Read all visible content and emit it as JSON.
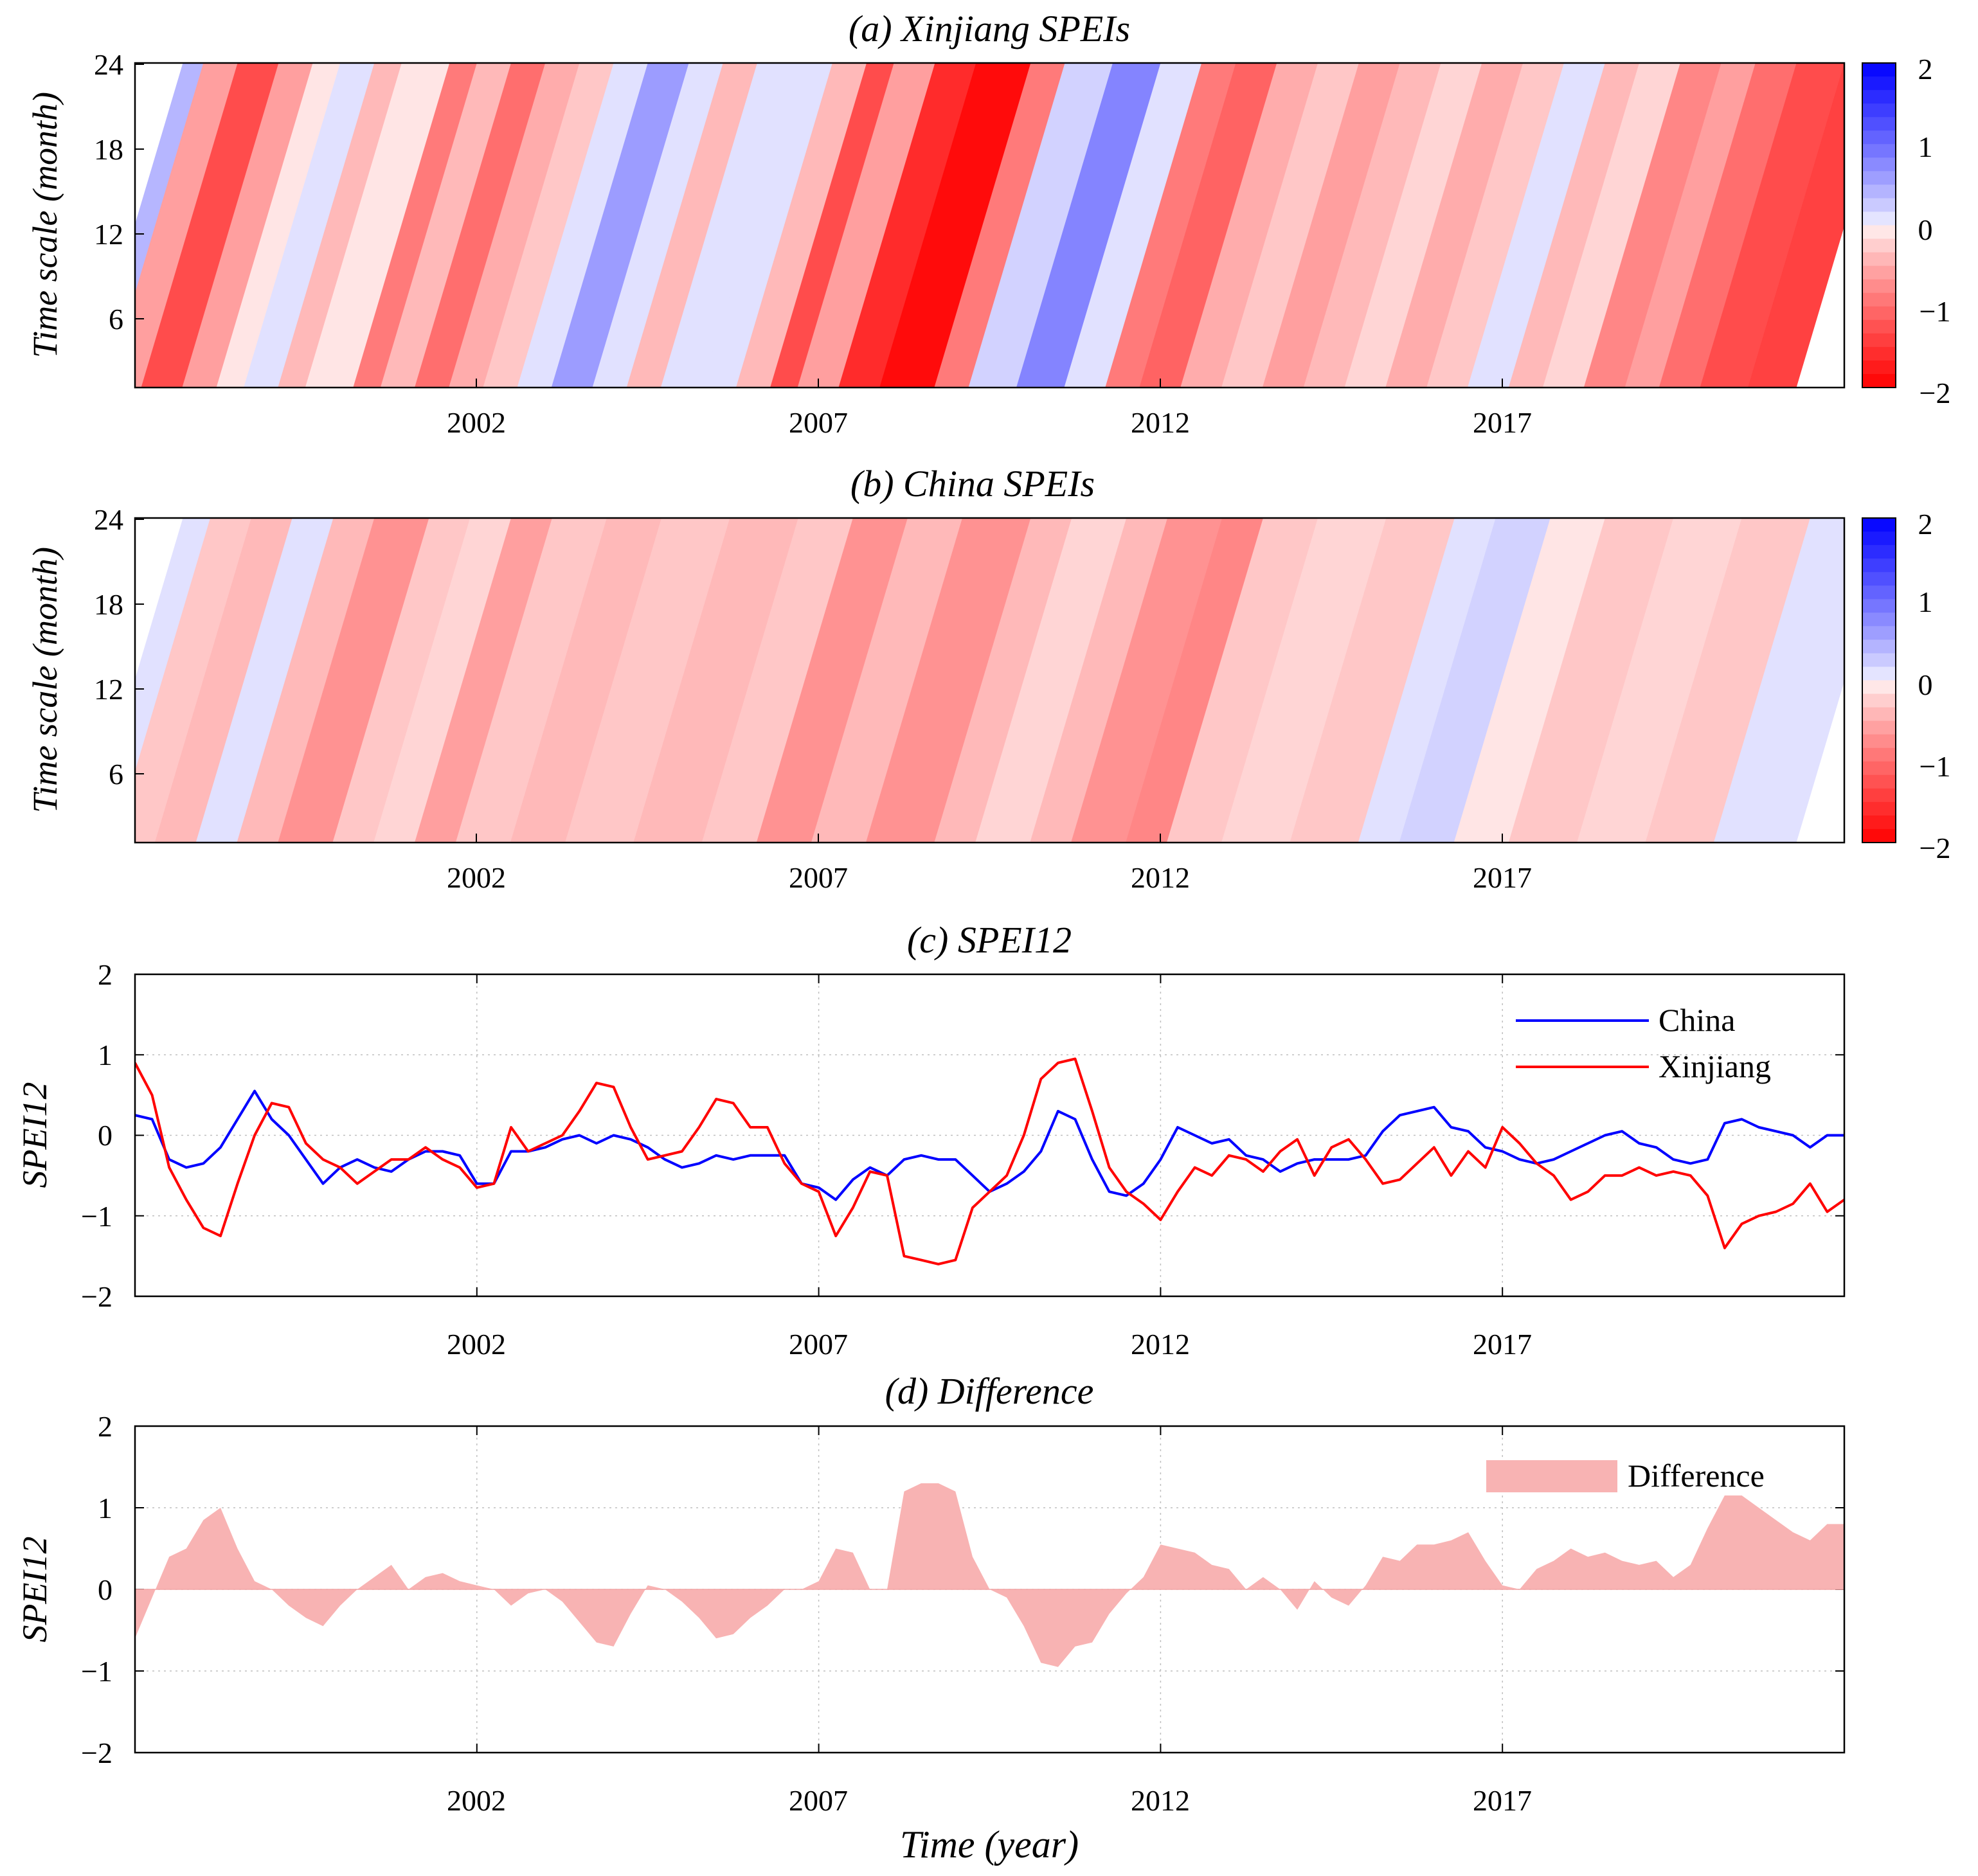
{
  "figure_xlabel": "Time (year)",
  "colors": {
    "china": "#0000ff",
    "xinjiang": "#ff0000",
    "difference_fill": "#f8b3b3",
    "grid": "#bfbfbf"
  },
  "chart_data": [
    {
      "type": "heatmap",
      "title": "(a) Xinjiang SPEIs",
      "ylabel": "Time scale (month)",
      "yticks": [
        "6",
        "12",
        "18",
        "24"
      ],
      "xticks": [
        "2002",
        "2007",
        "2012",
        "2017"
      ],
      "xlim": [
        1997,
        2022
      ],
      "ylim": [
        1,
        24
      ],
      "colorbar": {
        "ticks": [
          "2",
          "1",
          "0",
          "−1",
          "−2"
        ],
        "range": [
          -2,
          2
        ]
      },
      "bands": [
        {
          "start": 1997.0,
          "end": 1997.3,
          "v": 0.4
        },
        {
          "start": 1997.3,
          "end": 1997.8,
          "v": -0.6
        },
        {
          "start": 1997.8,
          "end": 1998.4,
          "v": -1.3
        },
        {
          "start": 1998.4,
          "end": 1998.9,
          "v": -0.6
        },
        {
          "start": 1998.9,
          "end": 1999.3,
          "v": -0.1
        },
        {
          "start": 1999.3,
          "end": 1999.8,
          "v": 0.1
        },
        {
          "start": 1999.8,
          "end": 2000.2,
          "v": -0.4
        },
        {
          "start": 2000.2,
          "end": 2000.9,
          "v": -0.1
        },
        {
          "start": 2000.9,
          "end": 2001.3,
          "v": -0.9
        },
        {
          "start": 2001.3,
          "end": 2001.8,
          "v": -0.4
        },
        {
          "start": 2001.8,
          "end": 2002.3,
          "v": -1.0
        },
        {
          "start": 2002.3,
          "end": 2002.8,
          "v": -0.5
        },
        {
          "start": 2002.8,
          "end": 2003.3,
          "v": -0.3
        },
        {
          "start": 2003.3,
          "end": 2003.8,
          "v": 0.1
        },
        {
          "start": 2003.8,
          "end": 2004.4,
          "v": 0.6
        },
        {
          "start": 2004.4,
          "end": 2004.9,
          "v": 0.1
        },
        {
          "start": 2004.9,
          "end": 2005.4,
          "v": -0.4
        },
        {
          "start": 2005.4,
          "end": 2006.0,
          "v": 0.1
        },
        {
          "start": 2006.0,
          "end": 2006.5,
          "v": 0.1
        },
        {
          "start": 2006.5,
          "end": 2007.0,
          "v": -0.4
        },
        {
          "start": 2007.0,
          "end": 2007.4,
          "v": -1.3
        },
        {
          "start": 2007.4,
          "end": 2008.0,
          "v": -0.6
        },
        {
          "start": 2008.0,
          "end": 2008.6,
          "v": -1.6
        },
        {
          "start": 2008.6,
          "end": 2009.4,
          "v": -1.9
        },
        {
          "start": 2009.4,
          "end": 2009.9,
          "v": -0.9
        },
        {
          "start": 2009.9,
          "end": 2010.6,
          "v": 0.2
        },
        {
          "start": 2010.6,
          "end": 2011.3,
          "v": 0.8
        },
        {
          "start": 2011.3,
          "end": 2011.9,
          "v": 0.1
        },
        {
          "start": 2011.9,
          "end": 2012.4,
          "v": -0.9
        },
        {
          "start": 2012.4,
          "end": 2013.0,
          "v": -1.1
        },
        {
          "start": 2013.0,
          "end": 2013.6,
          "v": -0.5
        },
        {
          "start": 2013.6,
          "end": 2014.2,
          "v": -0.3
        },
        {
          "start": 2014.2,
          "end": 2014.8,
          "v": -0.6
        },
        {
          "start": 2014.8,
          "end": 2015.4,
          "v": -0.4
        },
        {
          "start": 2015.4,
          "end": 2016.0,
          "v": -0.2
        },
        {
          "start": 2016.0,
          "end": 2016.6,
          "v": -0.5
        },
        {
          "start": 2016.6,
          "end": 2017.2,
          "v": -0.3
        },
        {
          "start": 2017.2,
          "end": 2017.8,
          "v": 0.1
        },
        {
          "start": 2017.8,
          "end": 2018.3,
          "v": -0.4
        },
        {
          "start": 2018.3,
          "end": 2018.9,
          "v": -0.2
        },
        {
          "start": 2018.9,
          "end": 2019.5,
          "v": -0.8
        },
        {
          "start": 2019.5,
          "end": 2020.0,
          "v": -0.6
        },
        {
          "start": 2020.0,
          "end": 2020.6,
          "v": -1.0
        },
        {
          "start": 2020.6,
          "end": 2021.3,
          "v": -1.3
        },
        {
          "start": 2021.3,
          "end": 2022.0,
          "v": -1.4
        }
      ]
    },
    {
      "type": "heatmap",
      "title": "(b) China SPEIs",
      "ylabel": "Time scale (month)",
      "yticks": [
        "6",
        "12",
        "18",
        "24"
      ],
      "xticks": [
        "2002",
        "2007",
        "2012",
        "2017"
      ],
      "xlim": [
        1997,
        2022
      ],
      "ylim": [
        1,
        24
      ],
      "colorbar": {
        "ticks": [
          "2",
          "1",
          "0",
          "−1",
          "−2"
        ],
        "range": [
          -2,
          2
        ]
      },
      "bands": [
        {
          "start": 1997.0,
          "end": 1997.4,
          "v": 0.1
        },
        {
          "start": 1997.4,
          "end": 1998.0,
          "v": -0.3
        },
        {
          "start": 1998.0,
          "end": 1998.6,
          "v": -0.4
        },
        {
          "start": 1998.6,
          "end": 1999.2,
          "v": 0.1
        },
        {
          "start": 1999.2,
          "end": 1999.8,
          "v": -0.4
        },
        {
          "start": 1999.8,
          "end": 2000.6,
          "v": -0.7
        },
        {
          "start": 2000.6,
          "end": 2001.2,
          "v": -0.3
        },
        {
          "start": 2001.2,
          "end": 2001.8,
          "v": -0.2
        },
        {
          "start": 2001.8,
          "end": 2002.4,
          "v": -0.6
        },
        {
          "start": 2002.4,
          "end": 2003.2,
          "v": -0.3
        },
        {
          "start": 2003.2,
          "end": 2004.0,
          "v": -0.4
        },
        {
          "start": 2004.0,
          "end": 2005.0,
          "v": -0.3
        },
        {
          "start": 2005.0,
          "end": 2006.0,
          "v": -0.4
        },
        {
          "start": 2006.0,
          "end": 2006.8,
          "v": -0.3
        },
        {
          "start": 2006.8,
          "end": 2007.6,
          "v": -0.7
        },
        {
          "start": 2007.6,
          "end": 2008.4,
          "v": -0.4
        },
        {
          "start": 2008.4,
          "end": 2009.4,
          "v": -0.7
        },
        {
          "start": 2009.4,
          "end": 2010.0,
          "v": -0.4
        },
        {
          "start": 2010.0,
          "end": 2010.8,
          "v": -0.2
        },
        {
          "start": 2010.8,
          "end": 2011.4,
          "v": -0.4
        },
        {
          "start": 2011.4,
          "end": 2012.2,
          "v": -0.7
        },
        {
          "start": 2012.2,
          "end": 2012.8,
          "v": -0.8
        },
        {
          "start": 2012.8,
          "end": 2013.6,
          "v": -0.3
        },
        {
          "start": 2013.6,
          "end": 2014.6,
          "v": -0.2
        },
        {
          "start": 2014.6,
          "end": 2015.6,
          "v": -0.3
        },
        {
          "start": 2015.6,
          "end": 2016.2,
          "v": 0.1
        },
        {
          "start": 2016.2,
          "end": 2017.0,
          "v": 0.2
        },
        {
          "start": 2017.0,
          "end": 2017.8,
          "v": -0.1
        },
        {
          "start": 2017.8,
          "end": 2018.8,
          "v": -0.3
        },
        {
          "start": 2018.8,
          "end": 2019.8,
          "v": -0.2
        },
        {
          "start": 2019.8,
          "end": 2020.8,
          "v": -0.3
        },
        {
          "start": 2020.8,
          "end": 2022.0,
          "v": 0.1
        }
      ]
    },
    {
      "type": "line",
      "title": "(c) SPEI12",
      "ylabel": "SPEI12",
      "xticks": [
        "2002",
        "2007",
        "2012",
        "2017"
      ],
      "yticks": [
        "−2",
        "−1",
        "0",
        "1",
        "2"
      ],
      "xlim": [
        1997,
        2022
      ],
      "ylim": [
        -2,
        2
      ],
      "grid": true,
      "legend_position": "top-right",
      "x": [
        1997.0,
        1997.25,
        1997.5,
        1997.75,
        1998.0,
        1998.25,
        1998.5,
        1998.75,
        1999.0,
        1999.25,
        1999.5,
        1999.75,
        2000.0,
        2000.25,
        2000.5,
        2000.75,
        2001.0,
        2001.25,
        2001.5,
        2001.75,
        2002.0,
        2002.25,
        2002.5,
        2002.75,
        2003.0,
        2003.25,
        2003.5,
        2003.75,
        2004.0,
        2004.25,
        2004.5,
        2004.75,
        2005.0,
        2005.25,
        2005.5,
        2005.75,
        2006.0,
        2006.25,
        2006.5,
        2006.75,
        2007.0,
        2007.25,
        2007.5,
        2007.75,
        2008.0,
        2008.25,
        2008.5,
        2008.75,
        2009.0,
        2009.25,
        2009.5,
        2009.75,
        2010.0,
        2010.25,
        2010.5,
        2010.75,
        2011.0,
        2011.25,
        2011.5,
        2011.75,
        2012.0,
        2012.25,
        2012.5,
        2012.75,
        2013.0,
        2013.25,
        2013.5,
        2013.75,
        2014.0,
        2014.25,
        2014.5,
        2014.75,
        2015.0,
        2015.25,
        2015.5,
        2015.75,
        2016.0,
        2016.25,
        2016.5,
        2016.75,
        2017.0,
        2017.25,
        2017.5,
        2017.75,
        2018.0,
        2018.25,
        2018.5,
        2018.75,
        2019.0,
        2019.25,
        2019.5,
        2019.75,
        2020.0,
        2020.25,
        2020.5,
        2020.75,
        2021.0,
        2021.25,
        2021.5,
        2021.75,
        2022.0
      ],
      "series": [
        {
          "name": "China",
          "values": [
            0.25,
            0.2,
            -0.3,
            -0.4,
            -0.35,
            -0.15,
            0.2,
            0.55,
            0.2,
            0.0,
            -0.3,
            -0.6,
            -0.4,
            -0.3,
            -0.4,
            -0.45,
            -0.3,
            -0.2,
            -0.2,
            -0.25,
            -0.6,
            -0.6,
            -0.2,
            -0.2,
            -0.15,
            -0.05,
            0.0,
            -0.1,
            0.0,
            -0.05,
            -0.15,
            -0.3,
            -0.4,
            -0.35,
            -0.25,
            -0.3,
            -0.25,
            -0.25,
            -0.25,
            -0.6,
            -0.65,
            -0.8,
            -0.55,
            -0.4,
            -0.5,
            -0.3,
            -0.25,
            -0.3,
            -0.3,
            -0.5,
            -0.7,
            -0.6,
            -0.45,
            -0.2,
            0.3,
            0.2,
            -0.3,
            -0.7,
            -0.75,
            -0.6,
            -0.3,
            0.1,
            0.0,
            -0.1,
            -0.05,
            -0.25,
            -0.3,
            -0.45,
            -0.35,
            -0.3,
            -0.3,
            -0.3,
            -0.25,
            0.05,
            0.25,
            0.3,
            0.35,
            0.1,
            0.05,
            -0.15,
            -0.2,
            -0.3,
            -0.35,
            -0.3,
            -0.2,
            -0.1,
            0.0,
            0.05,
            -0.1,
            -0.15,
            -0.3,
            -0.35,
            -0.3,
            0.15,
            0.2,
            0.1,
            0.05,
            0.0,
            -0.15,
            0.0,
            0.0
          ]
        },
        {
          "name": "Xinjiang",
          "values": [
            0.9,
            0.5,
            -0.4,
            -0.8,
            -1.15,
            -1.25,
            -0.6,
            0.0,
            0.4,
            0.35,
            -0.1,
            -0.3,
            -0.4,
            -0.6,
            -0.45,
            -0.3,
            -0.3,
            -0.15,
            -0.3,
            -0.4,
            -0.65,
            -0.6,
            0.1,
            -0.2,
            -0.1,
            0.0,
            0.3,
            0.65,
            0.6,
            0.1,
            -0.3,
            -0.25,
            -0.2,
            0.1,
            0.45,
            0.4,
            0.1,
            0.1,
            -0.35,
            -0.6,
            -0.7,
            -1.25,
            -0.9,
            -0.45,
            -0.5,
            -1.5,
            -1.55,
            -1.6,
            -1.55,
            -0.9,
            -0.7,
            -0.5,
            0.0,
            0.7,
            0.9,
            0.95,
            0.3,
            -0.4,
            -0.7,
            -0.85,
            -1.05,
            -0.7,
            -0.4,
            -0.5,
            -0.25,
            -0.3,
            -0.45,
            -0.2,
            -0.05,
            -0.5,
            -0.15,
            -0.05,
            -0.3,
            -0.6,
            -0.55,
            -0.35,
            -0.15,
            -0.5,
            -0.2,
            -0.4,
            0.1,
            -0.1,
            -0.35,
            -0.5,
            -0.8,
            -0.7,
            -0.5,
            -0.5,
            -0.4,
            -0.5,
            -0.45,
            -0.5,
            -0.75,
            -1.4,
            -1.1,
            -1.0,
            -0.95,
            -0.85,
            -0.6,
            -0.95,
            -0.8
          ]
        }
      ]
    },
    {
      "type": "area",
      "title": "(d) Difference",
      "ylabel": "SPEI12",
      "xlabel": "Time (year)",
      "xticks": [
        "2002",
        "2007",
        "2012",
        "2017"
      ],
      "yticks": [
        "−2",
        "−1",
        "0",
        "1",
        "2"
      ],
      "xlim": [
        1997,
        2022
      ],
      "ylim": [
        -2,
        2
      ],
      "grid": true,
      "legend_position": "top-right",
      "series": [
        {
          "name": "Difference",
          "x": [
            1997.0,
            1997.25,
            1997.5,
            1997.75,
            1998.0,
            1998.25,
            1998.5,
            1998.75,
            1999.0,
            1999.25,
            1999.5,
            1999.75,
            2000.0,
            2000.25,
            2000.5,
            2000.75,
            2001.0,
            2001.25,
            2001.5,
            2001.75,
            2002.0,
            2002.25,
            2002.5,
            2002.75,
            2003.0,
            2003.25,
            2003.5,
            2003.75,
            2004.0,
            2004.25,
            2004.5,
            2004.75,
            2005.0,
            2005.25,
            2005.5,
            2005.75,
            2006.0,
            2006.25,
            2006.5,
            2006.75,
            2007.0,
            2007.25,
            2007.5,
            2007.75,
            2008.0,
            2008.25,
            2008.5,
            2008.75,
            2009.0,
            2009.25,
            2009.5,
            2009.75,
            2010.0,
            2010.25,
            2010.5,
            2010.75,
            2011.0,
            2011.25,
            2011.5,
            2011.75,
            2012.0,
            2012.25,
            2012.5,
            2012.75,
            2013.0,
            2013.25,
            2013.5,
            2013.75,
            2014.0,
            2014.25,
            2014.5,
            2014.75,
            2015.0,
            2015.25,
            2015.5,
            2015.75,
            2016.0,
            2016.25,
            2016.5,
            2016.75,
            2017.0,
            2017.25,
            2017.5,
            2017.75,
            2018.0,
            2018.25,
            2018.5,
            2018.75,
            2019.0,
            2019.25,
            2019.5,
            2019.75,
            2020.0,
            2020.25,
            2020.5,
            2020.75,
            2021.0,
            2021.25,
            2021.5,
            2021.75,
            2022.0
          ],
          "values": [
            -0.6,
            -0.1,
            0.4,
            0.5,
            0.85,
            1.0,
            0.5,
            0.1,
            0.0,
            -0.2,
            -0.35,
            -0.45,
            -0.2,
            0.0,
            0.15,
            0.3,
            0.0,
            0.15,
            0.2,
            0.1,
            0.05,
            0.0,
            -0.2,
            -0.05,
            0.0,
            -0.15,
            -0.4,
            -0.65,
            -0.7,
            -0.3,
            0.05,
            0.0,
            -0.15,
            -0.35,
            -0.6,
            -0.55,
            -0.35,
            -0.2,
            0.0,
            0.0,
            0.1,
            0.5,
            0.45,
            0.0,
            0.0,
            1.2,
            1.3,
            1.3,
            1.2,
            0.4,
            0.0,
            -0.1,
            -0.45,
            -0.9,
            -0.95,
            -0.7,
            -0.65,
            -0.3,
            -0.05,
            0.15,
            0.55,
            0.5,
            0.45,
            0.3,
            0.25,
            0.0,
            0.15,
            0.0,
            -0.25,
            0.1,
            -0.1,
            -0.2,
            0.05,
            0.4,
            0.35,
            0.55,
            0.55,
            0.6,
            0.7,
            0.35,
            0.05,
            0.0,
            0.25,
            0.35,
            0.5,
            0.4,
            0.45,
            0.35,
            0.3,
            0.35,
            0.15,
            0.3,
            0.75,
            1.15,
            1.15,
            1.0,
            0.85,
            0.7,
            0.6,
            0.8,
            0.8
          ]
        }
      ]
    }
  ]
}
